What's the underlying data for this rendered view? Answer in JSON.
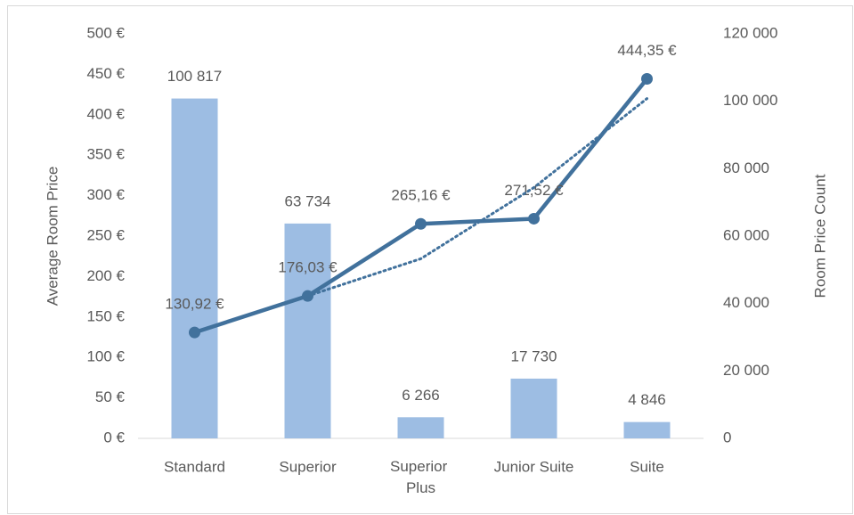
{
  "chart_data": {
    "type": "bar_line_combo",
    "categories": [
      "Standard",
      "Superior",
      "Superior Plus",
      "Junior Suite",
      "Suite"
    ],
    "ylabel": "Average Room Price",
    "y2label": "Room Price Count",
    "ylim": [
      0,
      500
    ],
    "yticks": [
      {
        "value": 0,
        "label": "0 €"
      },
      {
        "value": 50,
        "label": "50 €"
      },
      {
        "value": 100,
        "label": "100 €"
      },
      {
        "value": 150,
        "label": "150 €"
      },
      {
        "value": 200,
        "label": "200 €"
      },
      {
        "value": 250,
        "label": "250 €"
      },
      {
        "value": 300,
        "label": "300 €"
      },
      {
        "value": 350,
        "label": "350 €"
      },
      {
        "value": 400,
        "label": "400 €"
      },
      {
        "value": 450,
        "label": "450 €"
      },
      {
        "value": 500,
        "label": "500 €"
      }
    ],
    "y2lim": [
      0,
      120000
    ],
    "y2ticks": [
      0,
      {
        "value": 20000,
        "label": "20 000"
      },
      {
        "value": 40000,
        "label": "40 000"
      },
      {
        "value": 60000,
        "label": "60 000"
      },
      {
        "value": 80000,
        "label": "80 000"
      },
      {
        "value": 100000,
        "label": "100 000"
      },
      {
        "value": 120000,
        "label": "120 000"
      }
    ],
    "series": [
      {
        "type": "bar",
        "axis": "y2",
        "color": "#9dbde3",
        "values": [
          100817,
          63734,
          6266,
          17730,
          4846
        ],
        "value_labels": [
          "100 817",
          "63 734",
          "6 266",
          "17 730",
          "4 846"
        ]
      },
      {
        "type": "line",
        "axis": "y",
        "color": "#41719c",
        "values": [
          130.92,
          176.03,
          265.16,
          271.52,
          444.35
        ],
        "value_labels": [
          "130,92 €",
          "176,03 €",
          "265,16 €",
          "271,52 €",
          "444,35 €"
        ]
      },
      {
        "type": "trendline",
        "axis": "y",
        "color": "#41719c",
        "values": [
          null,
          176,
          222,
          310,
          420
        ]
      }
    ]
  }
}
